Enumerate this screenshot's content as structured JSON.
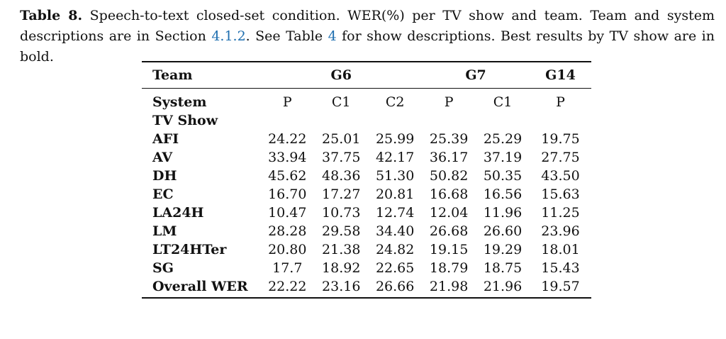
{
  "caption": {
    "label": "Table 8.",
    "part1": " Speech-to-text closed-set condition. WER(%) per TV show and team. Team and system descriptions are in Section ",
    "section_ref": "4.1.2",
    "part2": ". See Table ",
    "table_ref": "4",
    "part3": " for show descriptions. Best results by TV show are in bold."
  },
  "accent_color": "#1f6fb0",
  "table": {
    "team_label": "Team",
    "teams": [
      "G6",
      "G7",
      "G14"
    ],
    "system_label": "System",
    "systems": [
      "P",
      "C1",
      "C2",
      "P",
      "C1",
      "P"
    ],
    "tvshow_label": "TV Show",
    "rows": [
      {
        "show": "AFI",
        "values": [
          "24.22",
          "25.01",
          "25.99",
          "25.39",
          "25.29",
          "19.75"
        ],
        "best_index": 5
      },
      {
        "show": "AV",
        "values": [
          "33.94",
          "37.75",
          "42.17",
          "36.17",
          "37.19",
          "27.75"
        ],
        "best_index": 5
      },
      {
        "show": "DH",
        "values": [
          "45.62",
          "48.36",
          "51.30",
          "50.82",
          "50.35",
          "43.50"
        ],
        "best_index": 5
      },
      {
        "show": "EC",
        "values": [
          "16.70",
          "17.27",
          "20.81",
          "16.68",
          "16.56",
          "15.63"
        ],
        "best_index": 5
      },
      {
        "show": "LA24H",
        "values": [
          "10.47",
          "10.73",
          "12.74",
          "12.04",
          "11.96",
          "11.25"
        ],
        "best_index": 0
      },
      {
        "show": "LM",
        "values": [
          "28.28",
          "29.58",
          "34.40",
          "26.68",
          "26.60",
          "23.96"
        ],
        "best_index": 5
      },
      {
        "show": "LT24HTer",
        "values": [
          "20.80",
          "21.38",
          "24.82",
          "19.15",
          "19.29",
          "18.01"
        ],
        "best_index": 5
      },
      {
        "show": "SG",
        "values": [
          "17.7",
          "18.92",
          "22.65",
          "18.79",
          "18.75",
          "15.43"
        ],
        "best_index": 5
      },
      {
        "show": "Overall WER",
        "values": [
          "22.22",
          "23.16",
          "26.66",
          "21.98",
          "21.96",
          "19.57"
        ],
        "best_index": 5
      }
    ]
  }
}
